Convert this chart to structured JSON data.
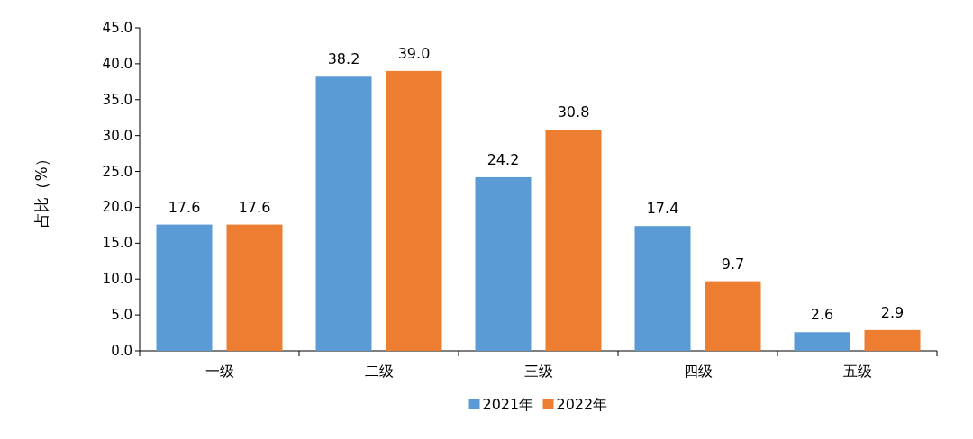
{
  "chart_data": {
    "type": "bar",
    "ylabel": "占比（%）",
    "categories": [
      "一级",
      "二级",
      "三级",
      "四级",
      "五级"
    ],
    "series": [
      {
        "name": "2021年",
        "color": "#5b9bd5",
        "values": [
          17.6,
          38.2,
          24.2,
          17.4,
          2.6
        ],
        "value_labels": [
          "17.6",
          "38.2",
          "24.2",
          "17.4",
          "2.6"
        ]
      },
      {
        "name": "2022年",
        "color": "#ed7d31",
        "values": [
          17.6,
          39.0,
          30.8,
          9.7,
          2.9
        ],
        "value_labels": [
          "17.6",
          "39.0",
          "30.8",
          "9.7",
          "2.9"
        ]
      }
    ],
    "ylim": [
      0,
      45
    ],
    "yticks": [
      {
        "value": 0,
        "label": "0.0"
      },
      {
        "value": 5,
        "label": "5.0"
      },
      {
        "value": 10,
        "label": "10.0"
      },
      {
        "value": 15,
        "label": "15.0"
      },
      {
        "value": 20,
        "label": "20.0"
      },
      {
        "value": 25,
        "label": "25.0"
      },
      {
        "value": 30,
        "label": "30.0"
      },
      {
        "value": 35,
        "label": "35.0"
      },
      {
        "value": 40,
        "label": "40.0"
      },
      {
        "value": 45,
        "label": "45.0"
      }
    ],
    "grid": false,
    "legend": "bottom"
  }
}
